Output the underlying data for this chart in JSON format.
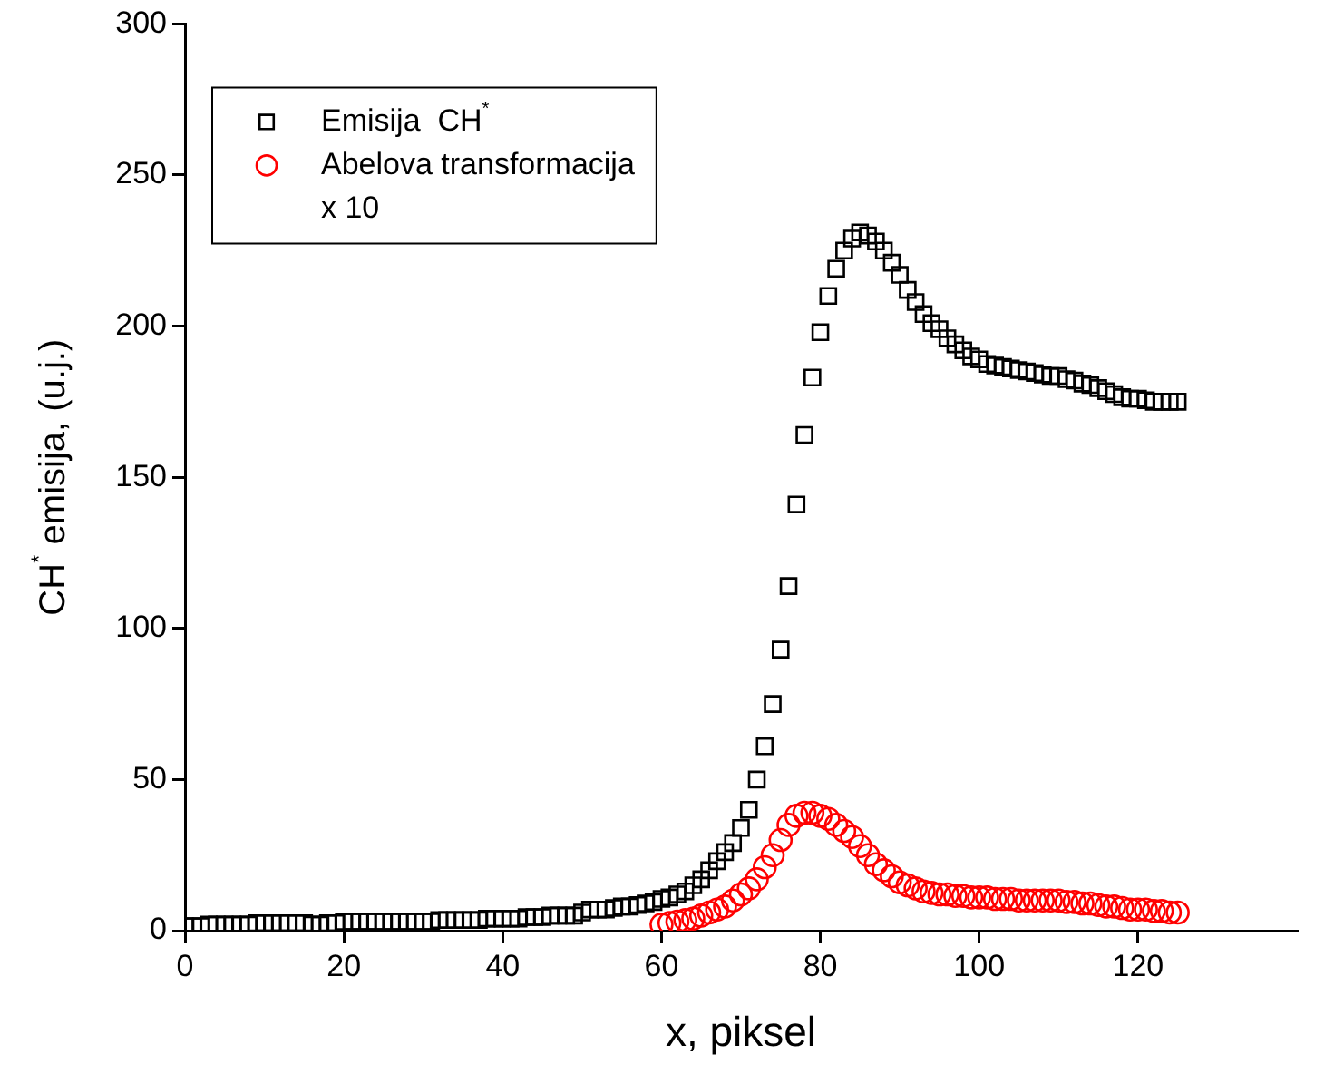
{
  "chart_data": {
    "type": "scatter",
    "xlabel": "x, piksel",
    "ylabel": "CH$^{*}$ emisija, (u.j.)",
    "xlim": [
      0,
      140
    ],
    "xticks": [
      0,
      20,
      40,
      60,
      80,
      100,
      120
    ],
    "ylim": [
      0,
      300
    ],
    "yticks": [
      0,
      50,
      100,
      150,
      200,
      250,
      300
    ],
    "grid": false,
    "legend": "top left",
    "series": [
      {
        "name": "Emisija  CH$^{*}$",
        "color": "#000000",
        "marker": "square",
        "x": [
          0,
          1,
          2,
          3,
          4,
          5,
          6,
          7,
          8,
          9,
          10,
          11,
          12,
          13,
          14,
          15,
          16,
          17,
          18,
          19,
          20,
          21,
          22,
          23,
          24,
          25,
          26,
          27,
          28,
          29,
          30,
          31,
          32,
          33,
          34,
          35,
          36,
          37,
          38,
          39,
          40,
          41,
          42,
          43,
          44,
          45,
          46,
          47,
          48,
          49,
          50,
          51,
          52,
          53,
          54,
          55,
          56,
          57,
          58,
          59,
          60,
          61,
          62,
          63,
          64,
          65,
          66,
          67,
          68,
          69,
          70,
          71,
          72,
          73,
          74,
          75,
          76,
          77,
          78,
          79,
          80,
          81,
          82,
          83,
          84,
          85,
          86,
          87,
          88,
          89,
          90,
          91,
          92,
          93,
          94,
          95,
          96,
          97,
          98,
          99,
          100,
          101,
          102,
          103,
          104,
          105,
          106,
          107,
          108,
          109,
          110,
          111,
          112,
          113,
          114,
          115,
          116,
          117,
          118,
          119,
          120,
          121,
          122,
          123,
          124,
          125
        ],
        "values": [
          1.5,
          1.5,
          1.5,
          2,
          2,
          2,
          2,
          2,
          2,
          2.5,
          2.5,
          2.5,
          2.5,
          2.5,
          2.5,
          2.5,
          2,
          2,
          2.5,
          2.5,
          3,
          3,
          3,
          3,
          3,
          3,
          3,
          3,
          3,
          3,
          3,
          3,
          3.5,
          3.5,
          3.5,
          3.5,
          3.5,
          3.5,
          4,
          4,
          4,
          4,
          4,
          4.5,
          4.5,
          4.5,
          5,
          5,
          5,
          5,
          6,
          7,
          7,
          7,
          7.5,
          8,
          8,
          8.5,
          9,
          9.5,
          10.5,
          11,
          12,
          13,
          15,
          17,
          20,
          23,
          26,
          29,
          34,
          40,
          50,
          61,
          75,
          93,
          114,
          141,
          164,
          183,
          198,
          210,
          219,
          225,
          229,
          231,
          230,
          228,
          225,
          221,
          217,
          212,
          208,
          204,
          201,
          199,
          196,
          194,
          192,
          190,
          189,
          187.5,
          187,
          186.5,
          186,
          185.5,
          185,
          184.5,
          184,
          183.5,
          183.5,
          182.5,
          182,
          181,
          180.5,
          179.5,
          178.5,
          177.5,
          176.5,
          176,
          176,
          175.5,
          175,
          175,
          175,
          175
        ]
      },
      {
        "name": "Abelova transformacija x 10",
        "color": "#ff0000",
        "marker": "circle",
        "x": [
          60,
          61,
          62,
          63,
          64,
          65,
          66,
          67,
          68,
          69,
          70,
          71,
          72,
          73,
          74,
          75,
          76,
          77,
          78,
          79,
          80,
          81,
          82,
          83,
          84,
          85,
          86,
          87,
          88,
          89,
          90,
          91,
          92,
          93,
          94,
          95,
          96,
          97,
          98,
          99,
          100,
          101,
          102,
          103,
          104,
          105,
          106,
          107,
          108,
          109,
          110,
          111,
          112,
          113,
          114,
          115,
          116,
          117,
          118,
          119,
          120,
          121,
          122,
          123,
          124,
          125
        ],
        "values": [
          2,
          2.5,
          3,
          3.5,
          4,
          5,
          6,
          7,
          8,
          10,
          12,
          14,
          17,
          21,
          25,
          30,
          35,
          38,
          39,
          39,
          38,
          37,
          35,
          33,
          31,
          28,
          25,
          22,
          20,
          18,
          16,
          15,
          14,
          13,
          12.5,
          12,
          12,
          11.5,
          11.5,
          11,
          11,
          11,
          10.5,
          10.5,
          10.5,
          10,
          10,
          10,
          10,
          10,
          10,
          9.5,
          9.5,
          9,
          9,
          8.5,
          8,
          8,
          7.5,
          7,
          7,
          7,
          6.5,
          6.5,
          6,
          6
        ]
      }
    ]
  }
}
